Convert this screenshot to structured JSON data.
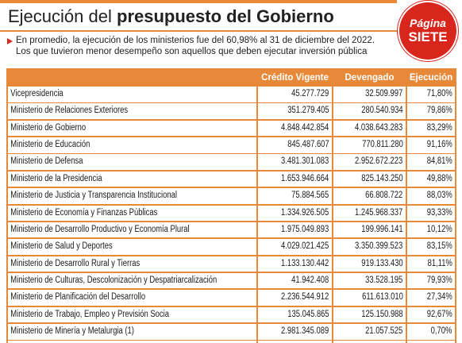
{
  "header": {
    "title_plain": "Ejecución del",
    "title_bold": "presupuesto del Gobierno",
    "subtitle_lines": [
      "En promedio, la ejecución de los ministerios fue del 60,98% al 31 de diciembre del 2022.",
      "Los que tuvieron menor desempeño son aquellos que deben ejecutar inversión pública"
    ]
  },
  "logo": {
    "line1": "Página",
    "line2": "SIETE"
  },
  "table": {
    "columns": [
      "Crédito Vigente",
      "Devengado",
      "Ejecución"
    ],
    "rows": [
      [
        "Vicepresidencia",
        "45.277.729",
        "32.509.997",
        "71,80%"
      ],
      [
        "Ministerio de Relaciones Exteriores",
        "351.279.405",
        "280.540.934",
        "79,86%"
      ],
      [
        "Ministerio de Gobierno",
        "4.848.442.854",
        "4.038.643.283",
        "83,29%"
      ],
      [
        "Ministerio de Educación",
        "845.487.607",
        "770.811.280",
        "91,16%"
      ],
      [
        "Ministerio de Defensa",
        "3.481.301.083",
        "2.952.672.223",
        "84,81%"
      ],
      [
        "Ministerio de la Presidencia",
        "1.653.946.664",
        "825.143.250",
        "49,88%"
      ],
      [
        "Ministerio de Justicia y Transparencia Institucional",
        "75.884.565",
        "66.808.722",
        "88,03%"
      ],
      [
        "Ministerio de Economía y Finanzas Públicas",
        "1.334.926.505",
        "1.245.968.337",
        "93,33%"
      ],
      [
        "Ministerio de Desarrollo Productivo y Economía Plural",
        "1.975.049.893",
        "199.996.141",
        "10,12%"
      ],
      [
        "Ministerio de Salud y Deportes",
        "4.029.021.425",
        "3.350.399.523",
        "83,15%"
      ],
      [
        "Ministerio de Desarrollo Rural y Tierras",
        "1.133.130.442",
        "919.133.430",
        "81,11%"
      ],
      [
        "Ministerio de Culturas, Descolonización y Despatriarcalización",
        "41.942.408",
        "33.528.195",
        "79,93%"
      ],
      [
        "Ministerio de Planificación del Desarrollo",
        "2.236.544.912",
        "611.613.010",
        "27,34%"
      ],
      [
        "Ministerio de Trabajo, Empleo y Previsión Socia",
        "135.045.865",
        "125.150.988",
        "92,67%"
      ],
      [
        "Ministerio de Minería y Metalurgia (1)",
        "2.981.345.089",
        "21.057.525",
        "0,70%"
      ]
    ]
  }
}
